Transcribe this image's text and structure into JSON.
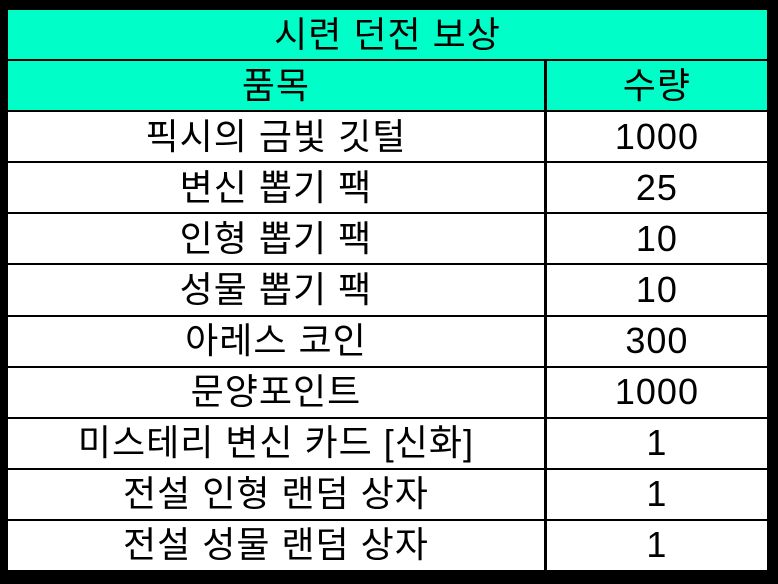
{
  "table": {
    "title": "시련 던전 보상",
    "columns": [
      "품목",
      "수량"
    ],
    "rows": [
      {
        "item": "픽시의 금빛 깃털",
        "quantity": "1000"
      },
      {
        "item": "변신 뽑기 팩",
        "quantity": "25"
      },
      {
        "item": "인형 뽑기 팩",
        "quantity": "10"
      },
      {
        "item": "성물 뽑기 팩",
        "quantity": "10"
      },
      {
        "item": "아레스 코인",
        "quantity": "300"
      },
      {
        "item": "문양포인트",
        "quantity": "1000"
      },
      {
        "item": "미스테리 변신 카드 [신화]",
        "quantity": "1"
      },
      {
        "item": "전설 인형 랜덤 상자",
        "quantity": "1"
      },
      {
        "item": "전설 성물 랜덤 상자",
        "quantity": "1"
      }
    ],
    "colors": {
      "header_background": "#00FFC8",
      "row_background": "#ffffff",
      "border": "#000000",
      "text": "#000000"
    }
  }
}
